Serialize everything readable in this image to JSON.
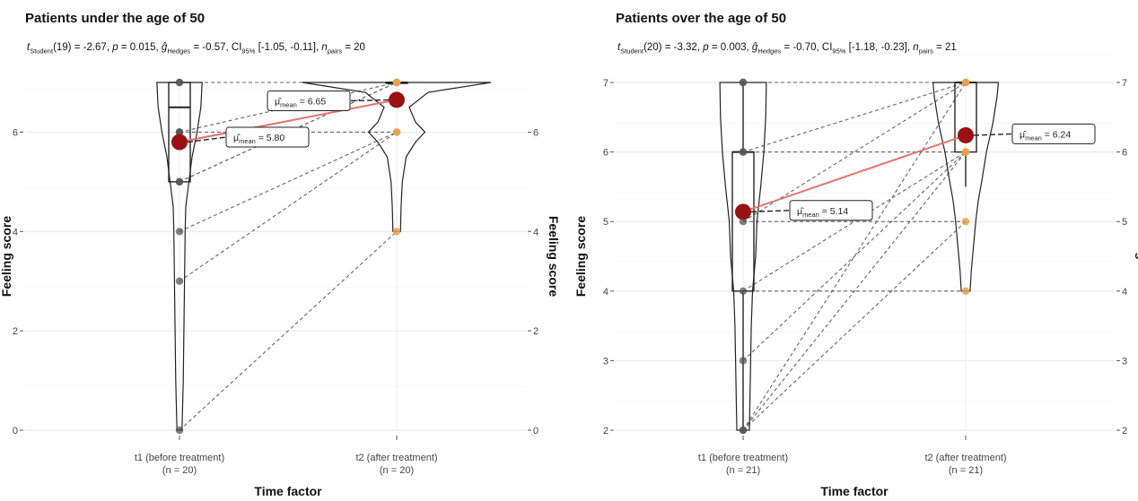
{
  "chart_data": [
    {
      "type": "violin-box",
      "title": "Patients under the age of 50",
      "subtitle": {
        "t_prefix": "t",
        "t_sub": "Student",
        "t_value": "(19) = -2.67, ",
        "p_label": "p",
        "p_value": " = 0.015, ",
        "g_label": "ĝ",
        "g_sub": "Hedges",
        "g_value": " = -0.57, ",
        "ci_label": "CI",
        "ci_sub": "95%",
        "ci_value": " [-1.05, -0.11], ",
        "n_label": "n",
        "n_sub": "pairs",
        "n_value": " = 20"
      },
      "xlabel": "Time factor",
      "ylabel": "Feeling score",
      "ylabel_right": "Feeling score",
      "categories": [
        {
          "line1": "t1 (before treatment)",
          "line2": "(n = 20)"
        },
        {
          "line1": "t2 (after treatment)",
          "line2": "(n = 20)"
        }
      ],
      "ylim": [
        0,
        7
      ],
      "yticks": [
        0,
        2,
        4,
        6
      ],
      "ytick_labels": [
        "0",
        "2",
        "4",
        "6"
      ],
      "means": [
        5.8,
        6.65
      ],
      "mean_labels": [
        "μ̂mean = 5.80",
        "μ̂mean = 6.65"
      ],
      "mean_label_text": "mean",
      "box": [
        {
          "q1": 5,
          "median": 6.5,
          "q3": 7,
          "whisker_low": 5,
          "whisker_high": 7
        },
        {
          "q1": 7,
          "median": 7,
          "q3": 7,
          "whisker_low": 7,
          "whisker_high": 7
        }
      ],
      "violin": [
        [
          [
            0,
            0.4
          ],
          [
            0.5,
            0.5
          ],
          [
            1,
            0.6
          ],
          [
            2,
            0.7
          ],
          [
            3,
            0.8
          ],
          [
            4,
            0.9
          ],
          [
            4.5,
            1.0
          ],
          [
            5,
            1.5
          ],
          [
            5.5,
            2
          ],
          [
            6,
            2.8
          ],
          [
            6.5,
            3.4
          ],
          [
            7,
            3.6
          ]
        ],
        [
          [
            4,
            0.6
          ],
          [
            4.5,
            0.7
          ],
          [
            5,
            0.9
          ],
          [
            5.5,
            1.5
          ],
          [
            5.8,
            3
          ],
          [
            6,
            4.5
          ],
          [
            6.2,
            3
          ],
          [
            6.5,
            2
          ],
          [
            6.8,
            5
          ],
          [
            7,
            15
          ]
        ]
      ],
      "points_t1": [
        0,
        3,
        4,
        5,
        5,
        6,
        6,
        6,
        7,
        7
      ],
      "points_t2": [
        4,
        6,
        6,
        7,
        7,
        7,
        7,
        7,
        7,
        7
      ],
      "pairs": [
        [
          0,
          4
        ],
        [
          3,
          6
        ],
        [
          4,
          6
        ],
        [
          5,
          7
        ],
        [
          5,
          7
        ],
        [
          6,
          6
        ],
        [
          6,
          7
        ],
        [
          7,
          7
        ]
      ],
      "colors": {
        "mean": "#9b1111",
        "mean_line": "#e8726c",
        "t2_points": "#e8a04a",
        "t1_points": "#555555"
      }
    },
    {
      "type": "violin-box",
      "title": "Patients over the age of 50",
      "subtitle": {
        "t_prefix": "t",
        "t_sub": "Student",
        "t_value": "(20) = -3.32, ",
        "p_label": "p",
        "p_value": " = 0.003, ",
        "g_label": "ĝ",
        "g_sub": "Hedges",
        "g_value": " = -0.70, ",
        "ci_label": "CI",
        "ci_sub": "95%",
        "ci_value": " [-1.18, -0.23], ",
        "n_label": "n",
        "n_sub": "pairs",
        "n_value": " = 21"
      },
      "xlabel": "Time factor",
      "ylabel": "Feeling score",
      "ylabel_right": "Feeling score",
      "categories": [
        {
          "line1": "t1 (before treatment)",
          "line2": "(n = 21)"
        },
        {
          "line1": "t2 (after treatment)",
          "line2": "(n = 21)"
        }
      ],
      "ylim": [
        2,
        7
      ],
      "yticks": [
        2,
        3,
        4,
        5,
        6,
        7
      ],
      "ytick_labels": [
        "2",
        "3",
        "4",
        "5",
        "6",
        "7"
      ],
      "means": [
        5.14,
        6.24
      ],
      "mean_labels": [
        "μ̂mean = 5.14",
        "μ̂mean = 6.24"
      ],
      "mean_label_text": "mean",
      "box": [
        {
          "q1": 4,
          "median": 6,
          "q3": 6,
          "whisker_low": 2,
          "whisker_high": 7
        },
        {
          "q1": 6,
          "median": 7,
          "q3": 7,
          "whisker_low": 5.5,
          "whisker_high": 7
        }
      ],
      "violin": [
        [
          [
            2,
            1.0
          ],
          [
            2.5,
            1.1
          ],
          [
            3,
            1.2
          ],
          [
            3.5,
            1.3
          ],
          [
            4,
            1.5
          ],
          [
            4.5,
            2.0
          ],
          [
            5,
            2.2
          ],
          [
            5.5,
            2.8
          ],
          [
            6,
            3.3
          ],
          [
            6.5,
            3.6
          ],
          [
            7,
            3.7
          ]
        ],
        [
          [
            4,
            0.7
          ],
          [
            4.3,
            0.9
          ],
          [
            4.6,
            1.2
          ],
          [
            5,
            1.6
          ],
          [
            5.3,
            2.0
          ],
          [
            5.6,
            2.6
          ],
          [
            6,
            3.3
          ],
          [
            6.4,
            4.3
          ],
          [
            6.8,
            5.0
          ],
          [
            7,
            5.2
          ]
        ]
      ],
      "points_t1": [
        2,
        2,
        3,
        4,
        5,
        6,
        6,
        7,
        7
      ],
      "points_t2": [
        4,
        5,
        6,
        6,
        7,
        7,
        7
      ],
      "pairs": [
        [
          2,
          5
        ],
        [
          2,
          6
        ],
        [
          2,
          7
        ],
        [
          3,
          6
        ],
        [
          4,
          4
        ],
        [
          4,
          6
        ],
        [
          5,
          5
        ],
        [
          5,
          7
        ],
        [
          6,
          6
        ],
        [
          6,
          7
        ],
        [
          7,
          7
        ]
      ],
      "colors": {
        "mean": "#9b1111",
        "mean_line": "#e8726c",
        "t2_points": "#e8a04a",
        "t1_points": "#555555"
      }
    }
  ]
}
